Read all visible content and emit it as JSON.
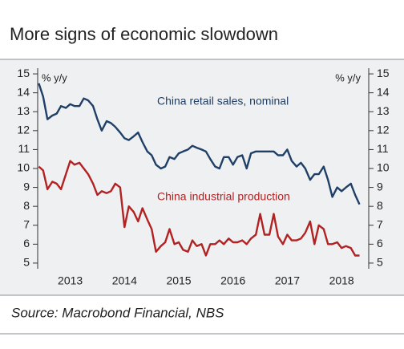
{
  "chart_data": {
    "type": "line",
    "title": "More signs of economic slowdown",
    "source": "Source: Macrobond Financial, NBS",
    "y_label_left": "% y/y",
    "y_label_right": "% y/y",
    "x": [
      2012.92,
      2013.0,
      2013.08,
      2013.17,
      2013.25,
      2013.33,
      2013.42,
      2013.5,
      2013.58,
      2013.67,
      2013.75,
      2013.83,
      2013.92,
      2014.0,
      2014.08,
      2014.17,
      2014.25,
      2014.33,
      2014.42,
      2014.5,
      2014.58,
      2014.67,
      2014.75,
      2014.83,
      2014.92,
      2015.0,
      2015.08,
      2015.17,
      2015.25,
      2015.33,
      2015.42,
      2015.5,
      2015.58,
      2015.67,
      2015.75,
      2015.83,
      2015.92,
      2016.0,
      2016.08,
      2016.17,
      2016.25,
      2016.33,
      2016.42,
      2016.5,
      2016.58,
      2016.67,
      2016.75,
      2016.83,
      2016.92,
      2017.0,
      2017.08,
      2017.17,
      2017.25,
      2017.33,
      2017.42,
      2017.5,
      2017.58,
      2017.67,
      2017.75,
      2017.83,
      2017.92,
      2018.0,
      2018.08,
      2018.17,
      2018.25,
      2018.33,
      2018.42,
      2018.5,
      2018.58,
      2018.67,
      2018.75,
      2018.83
    ],
    "series": [
      {
        "name": "China retail sales, nominal",
        "color": "#1f3f66",
        "values": [
          14.5,
          13.8,
          12.6,
          12.8,
          12.9,
          13.3,
          13.2,
          13.4,
          13.3,
          13.3,
          13.7,
          13.6,
          13.3,
          12.6,
          12.0,
          12.5,
          12.4,
          12.2,
          11.9,
          11.6,
          11.5,
          11.7,
          11.9,
          11.4,
          10.9,
          10.7,
          10.2,
          10.0,
          10.1,
          10.6,
          10.5,
          10.8,
          10.9,
          11.0,
          11.2,
          11.1,
          11.0,
          10.9,
          10.5,
          10.1,
          10.0,
          10.6,
          10.6,
          10.2,
          10.6,
          10.7,
          10.0,
          10.8,
          10.9,
          10.9,
          10.9,
          10.9,
          10.9,
          10.7,
          10.7,
          11.0,
          10.4,
          10.1,
          10.3,
          10.0,
          9.4,
          9.7,
          9.7,
          10.1,
          9.4,
          8.5,
          9.0,
          8.8,
          9.0,
          9.2,
          8.6,
          8.1
        ]
      },
      {
        "name": "China industrial production",
        "color": "#b22222",
        "values": [
          10.1,
          9.9,
          8.9,
          9.3,
          9.2,
          8.9,
          9.7,
          10.4,
          10.2,
          10.3,
          10.0,
          9.7,
          9.2,
          8.6,
          8.8,
          8.7,
          8.8,
          9.2,
          9.0,
          6.9,
          8.0,
          7.7,
          7.2,
          7.9,
          7.3,
          6.8,
          5.6,
          5.9,
          6.1,
          6.8,
          6.0,
          6.1,
          5.7,
          5.6,
          6.2,
          5.9,
          6.0,
          5.4,
          6.0,
          6.0,
          6.2,
          6.0,
          6.3,
          6.1,
          6.1,
          6.2,
          6.0,
          6.3,
          6.5,
          7.6,
          6.5,
          6.5,
          7.6,
          6.4,
          6.0,
          6.5,
          6.2,
          6.2,
          6.3,
          6.6,
          7.2,
          6.0,
          7.0,
          6.8,
          6.0,
          6.0,
          6.1,
          5.8,
          5.9,
          5.8,
          5.4,
          5.4
        ]
      }
    ],
    "xlim": [
      2012.9,
      2019.0
    ],
    "xticks": [
      {
        "value": 2013.5,
        "label": "2013"
      },
      {
        "value": 2014.5,
        "label": "2014"
      },
      {
        "value": 2015.5,
        "label": "2015"
      },
      {
        "value": 2016.5,
        "label": "2016"
      },
      {
        "value": 2017.5,
        "label": "2017"
      },
      {
        "value": 2018.5,
        "label": "2018"
      }
    ],
    "ylim": [
      4.7,
      15.3
    ],
    "yticks": [
      5,
      6,
      7,
      8,
      9,
      10,
      11,
      12,
      13,
      14,
      15
    ],
    "grid": false
  }
}
